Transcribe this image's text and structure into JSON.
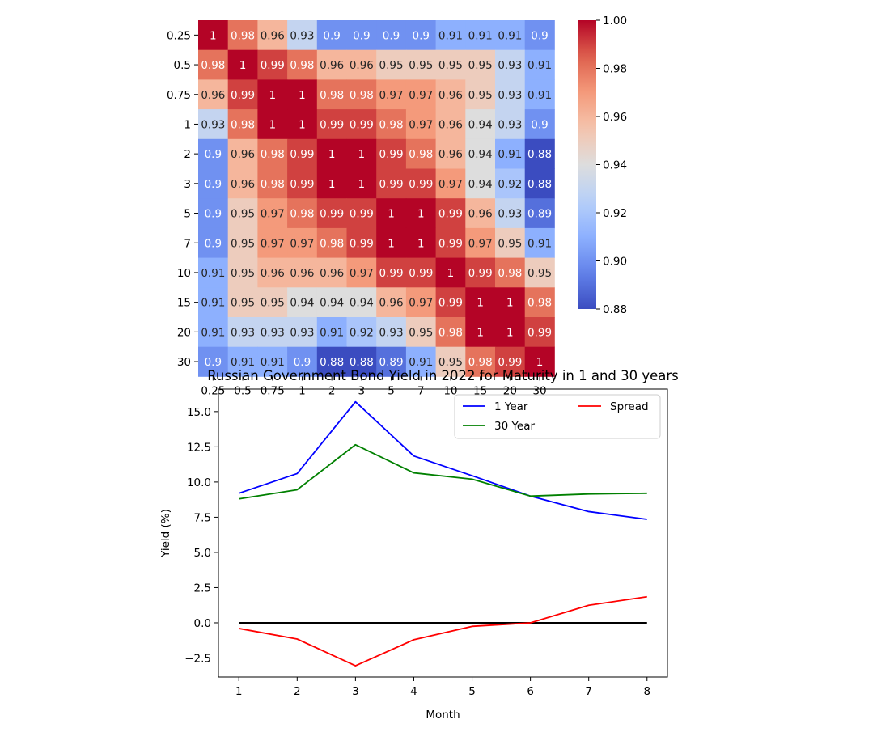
{
  "chart_data": [
    {
      "type": "heatmap",
      "title": "",
      "xlabel": "",
      "ylabel": "",
      "x_labels": [
        "0.25",
        "0.5",
        "0.75",
        "1",
        "2",
        "3",
        "5",
        "7",
        "10",
        "15",
        "20",
        "30"
      ],
      "y_labels": [
        "0.25",
        "0.5",
        "0.75",
        "1",
        "2",
        "3",
        "5",
        "7",
        "10",
        "15",
        "20",
        "30"
      ],
      "values": [
        [
          1,
          0.98,
          0.96,
          0.93,
          0.9,
          0.9,
          0.9,
          0.9,
          0.91,
          0.91,
          0.91,
          0.9
        ],
        [
          0.98,
          1,
          0.99,
          0.98,
          0.96,
          0.96,
          0.95,
          0.95,
          0.95,
          0.95,
          0.93,
          0.91
        ],
        [
          0.96,
          0.99,
          1,
          1,
          0.98,
          0.98,
          0.97,
          0.97,
          0.96,
          0.95,
          0.93,
          0.91
        ],
        [
          0.93,
          0.98,
          1,
          1,
          0.99,
          0.99,
          0.98,
          0.97,
          0.96,
          0.94,
          0.93,
          0.9
        ],
        [
          0.9,
          0.96,
          0.98,
          0.99,
          1,
          1,
          0.99,
          0.98,
          0.96,
          0.94,
          0.91,
          0.88
        ],
        [
          0.9,
          0.96,
          0.98,
          0.99,
          1,
          1,
          0.99,
          0.99,
          0.97,
          0.94,
          0.92,
          0.88
        ],
        [
          0.9,
          0.95,
          0.97,
          0.98,
          0.99,
          0.99,
          1,
          1,
          0.99,
          0.96,
          0.93,
          0.89
        ],
        [
          0.9,
          0.95,
          0.97,
          0.97,
          0.98,
          0.99,
          1,
          1,
          0.99,
          0.97,
          0.95,
          0.91
        ],
        [
          0.91,
          0.95,
          0.96,
          0.96,
          0.96,
          0.97,
          0.99,
          0.99,
          1,
          0.99,
          0.98,
          0.95
        ],
        [
          0.91,
          0.95,
          0.95,
          0.94,
          0.94,
          0.94,
          0.96,
          0.97,
          0.99,
          1,
          1,
          0.98
        ],
        [
          0.91,
          0.93,
          0.93,
          0.93,
          0.91,
          0.92,
          0.93,
          0.95,
          0.98,
          1,
          1,
          0.99
        ],
        [
          0.9,
          0.91,
          0.91,
          0.9,
          0.88,
          0.88,
          0.89,
          0.91,
          0.95,
          0.98,
          0.99,
          1
        ]
      ],
      "colormap": "coolwarm",
      "colorbar": {
        "range": [
          0.88,
          1.0
        ],
        "ticks": [
          "0.88",
          "0.90",
          "0.92",
          "0.94",
          "0.96",
          "0.98",
          "1.00"
        ]
      },
      "annotations": true
    },
    {
      "type": "line",
      "title": "Russian Government Bond Yield in 2022 for Maturity in 1 and 30 years",
      "xlabel": "Month",
      "ylabel": "Yield (%)",
      "x": [
        1,
        2,
        3,
        4,
        5,
        6,
        7,
        8
      ],
      "xlim": [
        0.65,
        8.35
      ],
      "ylim": [
        -3.85,
        16.6
      ],
      "y_ticks": [
        "−2.5",
        "0.0",
        "2.5",
        "5.0",
        "7.5",
        "10.0",
        "12.5",
        "15.0"
      ],
      "x_ticks": [
        "1",
        "2",
        "3",
        "4",
        "5",
        "6",
        "7",
        "8"
      ],
      "series": [
        {
          "name": "1 Year",
          "color": "#0000ff",
          "values": [
            9.2,
            10.6,
            15.7,
            11.85,
            10.45,
            9.0,
            7.9,
            7.35
          ]
        },
        {
          "name": "30 Year",
          "color": "#008000",
          "values": [
            8.8,
            9.45,
            12.65,
            10.65,
            10.2,
            9.0,
            9.15,
            9.2
          ]
        },
        {
          "name": "Spread",
          "color": "#ff0000",
          "values": [
            -0.4,
            -1.15,
            -3.05,
            -1.2,
            -0.25,
            0.0,
            1.25,
            1.85
          ]
        }
      ],
      "baseline": {
        "y": 0,
        "color": "#000000"
      },
      "legend": "top-right, 2 columns",
      "grid": false
    }
  ]
}
